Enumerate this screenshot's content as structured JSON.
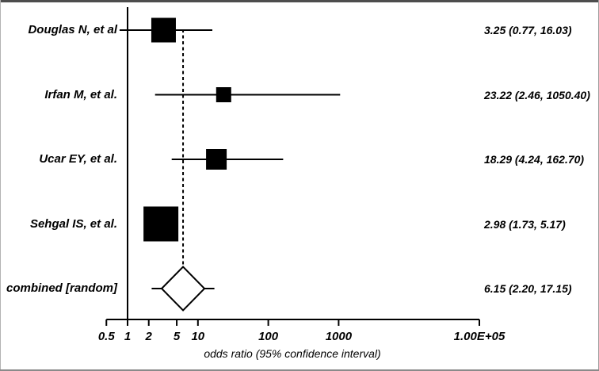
{
  "chart_data": {
    "type": "forest",
    "title": "",
    "xlabel": "odds ratio (95% confidence interval)",
    "x_scale": "log10",
    "x_range": [
      0.5,
      100000
    ],
    "grid": false,
    "x_ticks": [
      {
        "v": 0.5,
        "label": "0.5"
      },
      {
        "v": 1,
        "label": "1"
      },
      {
        "v": 2,
        "label": "2"
      },
      {
        "v": 5,
        "label": "5"
      },
      {
        "v": 10,
        "label": "10"
      },
      {
        "v": 100,
        "label": "100"
      },
      {
        "v": 1000,
        "label": "1000"
      },
      {
        "v": 100000,
        "label": "1.00E+05"
      }
    ],
    "reference_line": {
      "x": 1,
      "style": "solid"
    },
    "pooled_line": {
      "x": 6.15,
      "style": "dashed"
    },
    "studies": [
      {
        "label": "Douglas N, et al",
        "or": 3.25,
        "ci_low": 0.77,
        "ci_high": 16.03,
        "estimate_label": "3.25 (0.77, 16.03)",
        "marker_px": 31
      },
      {
        "label": "Irfan M, et al.",
        "or": 23.22,
        "ci_low": 2.46,
        "ci_high": 1050.4,
        "estimate_label": "23.22 (2.46, 1050.40)",
        "marker_px": 19
      },
      {
        "label": "Ucar EY, et al.",
        "or": 18.29,
        "ci_low": 4.24,
        "ci_high": 162.7,
        "estimate_label": "18.29 (4.24, 162.70)",
        "marker_px": 26
      },
      {
        "label": "Sehgal IS, et al.",
        "or": 2.98,
        "ci_low": 1.73,
        "ci_high": 5.17,
        "estimate_label": "2.98 (1.73, 5.17)",
        "marker_px": 44
      }
    ],
    "combined": {
      "label": "combined [random]",
      "or": 6.15,
      "ci_low": 2.2,
      "ci_high": 17.15,
      "estimate_label": "6.15 (2.20, 17.15)",
      "marker": "diamond"
    },
    "colors": {
      "marker": "#000000",
      "line": "#000000",
      "text": "#000000",
      "background": "#ffffff",
      "frame_border": "#4d4d4d"
    }
  }
}
